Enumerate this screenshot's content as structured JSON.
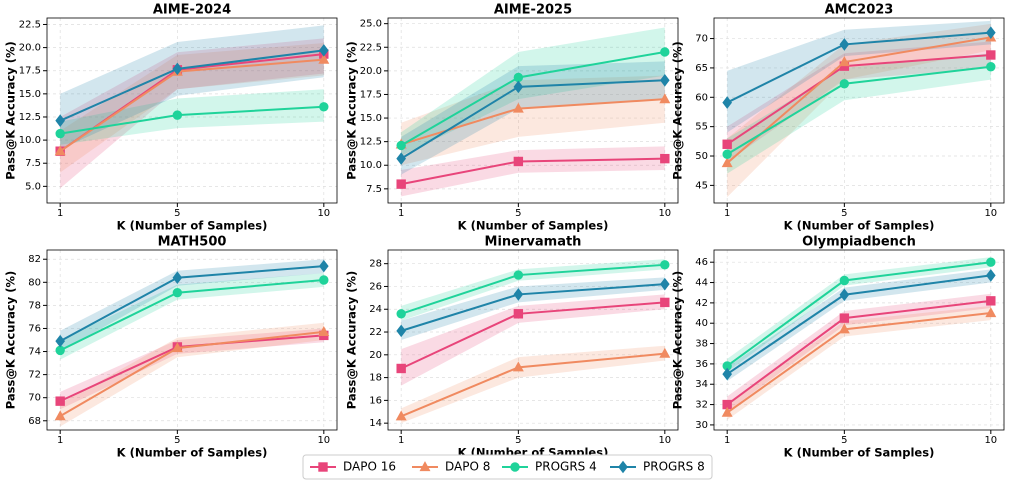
{
  "chart_data": [
    {
      "type": "line",
      "title": "AIME-2024",
      "x_label": "K (Number of Samples)",
      "y_label": "Pass@K Accuracy (%)",
      "legend": "below",
      "grid": true,
      "x": [
        1,
        5,
        10
      ],
      "xlim": [
        0.55,
        10.45
      ],
      "xticks": [
        1,
        5,
        10
      ],
      "ylim": [
        3.2,
        23.2
      ],
      "yticks": [
        {
          "value": 5,
          "label": "5.0"
        },
        {
          "value": 7.5,
          "label": "7.5"
        },
        {
          "value": 10,
          "label": "10.0"
        },
        {
          "value": 12.5,
          "label": "12.5"
        },
        {
          "value": 15,
          "label": "15.0"
        },
        {
          "value": 17.5,
          "label": "17.5"
        },
        {
          "value": 20,
          "label": "20.0"
        },
        {
          "value": 22.5,
          "label": "22.5"
        }
      ],
      "series": [
        {
          "name": "DAPO 16",
          "color": "#e8457a",
          "marker": "square",
          "values": [
            8.8,
            17.6,
            19.3
          ],
          "lower": [
            4.8,
            15.5,
            17.2
          ],
          "upper": [
            12.5,
            19.5,
            21.0
          ]
        },
        {
          "name": "DAPO 8",
          "color": "#f08a60",
          "marker": "triangle",
          "values": [
            8.8,
            17.4,
            18.7
          ],
          "lower": [
            6.5,
            15.5,
            17.0
          ],
          "upper": [
            11.0,
            19.2,
            20.5
          ]
        },
        {
          "name": "PROGRS 4",
          "color": "#1fd39a",
          "marker": "circle",
          "values": [
            10.7,
            12.7,
            13.6
          ],
          "lower": [
            9.5,
            11.3,
            12.0
          ],
          "upper": [
            12.0,
            14.5,
            15.5
          ]
        },
        {
          "name": "PROGRS 8",
          "color": "#1f84a8",
          "marker": "diamond",
          "values": [
            12.1,
            17.7,
            19.7
          ],
          "lower": [
            9.0,
            14.8,
            16.8
          ],
          "upper": [
            15.0,
            20.6,
            22.4
          ]
        }
      ]
    },
    {
      "type": "line",
      "title": "AIME-2025",
      "x_label": "K (Number of Samples)",
      "y_label": "Pass@K Accuracy (%)",
      "grid": true,
      "x": [
        1,
        5,
        10
      ],
      "xlim": [
        0.55,
        10.45
      ],
      "xticks": [
        1,
        5,
        10
      ],
      "ylim": [
        6.0,
        25.6
      ],
      "yticks": [
        {
          "value": 7.5,
          "label": "7.5"
        },
        {
          "value": 10,
          "label": "10.0"
        },
        {
          "value": 12.5,
          "label": "12.5"
        },
        {
          "value": 15,
          "label": "15.0"
        },
        {
          "value": 17.5,
          "label": "17.5"
        },
        {
          "value": 20,
          "label": "20.0"
        },
        {
          "value": 22.5,
          "label": "22.5"
        },
        {
          "value": 25,
          "label": "25.0"
        }
      ],
      "series": [
        {
          "name": "DAPO 16",
          "color": "#e8457a",
          "marker": "square",
          "values": [
            8.0,
            10.4,
            10.7
          ],
          "lower": [
            6.7,
            9.2,
            9.5
          ],
          "upper": [
            9.5,
            11.6,
            12.0
          ]
        },
        {
          "name": "DAPO 8",
          "color": "#f08a60",
          "marker": "triangle",
          "values": [
            12.2,
            16.0,
            17.0
          ],
          "lower": [
            10.0,
            13.0,
            14.5
          ],
          "upper": [
            14.5,
            19.0,
            19.5
          ]
        },
        {
          "name": "PROGRS 4",
          "color": "#1fd39a",
          "marker": "circle",
          "values": [
            12.1,
            19.3,
            22.0
          ],
          "lower": [
            11.0,
            17.0,
            19.5
          ],
          "upper": [
            13.5,
            22.0,
            24.6
          ]
        },
        {
          "name": "PROGRS 8",
          "color": "#1f84a8",
          "marker": "diamond",
          "values": [
            10.7,
            18.3,
            19.0
          ],
          "lower": [
            9.0,
            16.0,
            17.0
          ],
          "upper": [
            13.0,
            20.5,
            21.0
          ]
        }
      ]
    },
    {
      "type": "line",
      "title": "AMC2023",
      "x_label": "K (Number of Samples)",
      "y_label": "Pass@K Accuracy (%)",
      "grid": true,
      "x": [
        1,
        5,
        10
      ],
      "xlim": [
        0.55,
        10.45
      ],
      "xticks": [
        1,
        5,
        10
      ],
      "ylim": [
        42,
        73.5
      ],
      "yticks": [
        45,
        50,
        55,
        60,
        65,
        70
      ],
      "series": [
        {
          "name": "DAPO 16",
          "color": "#e8457a",
          "marker": "square",
          "values": [
            52.0,
            65.3,
            67.2
          ],
          "lower": [
            49.0,
            63.0,
            65.0
          ],
          "upper": [
            55.0,
            67.5,
            69.5
          ]
        },
        {
          "name": "DAPO 8",
          "color": "#f08a60",
          "marker": "triangle",
          "values": [
            48.8,
            66.0,
            70.2
          ],
          "lower": [
            43.0,
            63.0,
            68.0
          ],
          "upper": [
            53.0,
            69.0,
            72.5
          ]
        },
        {
          "name": "PROGRS 4",
          "color": "#1fd39a",
          "marker": "circle",
          "values": [
            50.3,
            62.3,
            65.2
          ],
          "lower": [
            47.0,
            59.5,
            63.0
          ],
          "upper": [
            53.0,
            65.0,
            67.5
          ]
        },
        {
          "name": "PROGRS 8",
          "color": "#1f84a8",
          "marker": "diamond",
          "values": [
            59.1,
            69.0,
            71.0
          ],
          "lower": [
            54.0,
            67.0,
            69.0
          ],
          "upper": [
            64.5,
            71.5,
            73.0
          ]
        }
      ]
    },
    {
      "type": "line",
      "title": "MATH500",
      "x_label": "K (Number of Samples)",
      "y_label": "Pass@K Accuracy (%)",
      "grid": true,
      "x": [
        1,
        5,
        10
      ],
      "xlim": [
        0.55,
        10.45
      ],
      "xticks": [
        1,
        5,
        10
      ],
      "ylim": [
        67.2,
        82.8
      ],
      "yticks": [
        68,
        70,
        72,
        74,
        76,
        78,
        80,
        82
      ],
      "series": [
        {
          "name": "DAPO 16",
          "color": "#e8457a",
          "marker": "square",
          "values": [
            69.7,
            74.4,
            75.4
          ],
          "lower": [
            69.0,
            73.8,
            74.8
          ],
          "upper": [
            70.5,
            75.0,
            76.0
          ]
        },
        {
          "name": "DAPO 8",
          "color": "#f08a60",
          "marker": "triangle",
          "values": [
            68.4,
            74.3,
            75.7
          ],
          "lower": [
            67.5,
            73.5,
            75.0
          ],
          "upper": [
            69.5,
            75.2,
            76.5
          ]
        },
        {
          "name": "PROGRS 4",
          "color": "#1fd39a",
          "marker": "circle",
          "values": [
            74.1,
            79.1,
            80.2
          ],
          "lower": [
            73.3,
            78.5,
            79.6
          ],
          "upper": [
            75.0,
            79.8,
            80.8
          ]
        },
        {
          "name": "PROGRS 8",
          "color": "#1f84a8",
          "marker": "diamond",
          "values": [
            74.9,
            80.4,
            81.4
          ],
          "lower": [
            74.0,
            79.7,
            80.8
          ],
          "upper": [
            75.8,
            81.0,
            82.0
          ]
        }
      ]
    },
    {
      "type": "line",
      "title": "Minervamath",
      "x_label": "K (Number of Samples)",
      "y_label": "Pass@K Accuracy (%)",
      "grid": true,
      "x": [
        1,
        5,
        10
      ],
      "xlim": [
        0.55,
        10.45
      ],
      "xticks": [
        1,
        5,
        10
      ],
      "ylim": [
        13.4,
        29.2
      ],
      "yticks": [
        14,
        16,
        18,
        20,
        22,
        24,
        26,
        28
      ],
      "series": [
        {
          "name": "DAPO 16",
          "color": "#e8457a",
          "marker": "square",
          "values": [
            18.8,
            23.6,
            24.6
          ],
          "lower": [
            17.3,
            22.8,
            24.0
          ],
          "upper": [
            20.5,
            24.3,
            25.3
          ]
        },
        {
          "name": "DAPO 8",
          "color": "#f08a60",
          "marker": "triangle",
          "values": [
            14.6,
            18.9,
            20.1
          ],
          "lower": [
            14.0,
            18.0,
            19.5
          ],
          "upper": [
            15.3,
            19.8,
            20.8
          ]
        },
        {
          "name": "PROGRS 4",
          "color": "#1fd39a",
          "marker": "circle",
          "values": [
            23.6,
            27.0,
            27.9
          ],
          "lower": [
            23.0,
            26.5,
            27.5
          ],
          "upper": [
            24.3,
            27.5,
            28.4
          ]
        },
        {
          "name": "PROGRS 8",
          "color": "#1f84a8",
          "marker": "diamond",
          "values": [
            22.1,
            25.3,
            26.2
          ],
          "lower": [
            21.3,
            24.6,
            25.7
          ],
          "upper": [
            23.0,
            26.0,
            26.8
          ]
        }
      ]
    },
    {
      "type": "line",
      "title": "Olympiadbench",
      "x_label": "K (Number of Samples)",
      "y_label": "Pass@K Accuracy (%)",
      "grid": true,
      "x": [
        1,
        5,
        10
      ],
      "xlim": [
        0.55,
        10.45
      ],
      "xticks": [
        1,
        5,
        10
      ],
      "ylim": [
        29.5,
        47.2
      ],
      "yticks": [
        30,
        32,
        34,
        36,
        38,
        40,
        42,
        44,
        46
      ],
      "series": [
        {
          "name": "DAPO 16",
          "color": "#e8457a",
          "marker": "square",
          "values": [
            32.0,
            40.5,
            42.2
          ],
          "lower": [
            31.3,
            39.8,
            41.5
          ],
          "upper": [
            32.8,
            41.2,
            42.9
          ]
        },
        {
          "name": "DAPO 8",
          "color": "#f08a60",
          "marker": "triangle",
          "values": [
            31.2,
            39.4,
            41.0
          ],
          "lower": [
            30.5,
            38.7,
            40.3
          ],
          "upper": [
            32.0,
            40.2,
            41.7
          ]
        },
        {
          "name": "PROGRS 4",
          "color": "#1fd39a",
          "marker": "circle",
          "values": [
            35.8,
            44.2,
            46.0
          ],
          "lower": [
            35.2,
            43.7,
            45.5
          ],
          "upper": [
            36.5,
            44.8,
            46.5
          ]
        },
        {
          "name": "PROGRS 8",
          "color": "#1f84a8",
          "marker": "diamond",
          "values": [
            35.0,
            42.8,
            44.7
          ],
          "lower": [
            34.3,
            42.2,
            44.0
          ],
          "upper": [
            35.7,
            43.5,
            45.3
          ]
        }
      ]
    }
  ]
}
